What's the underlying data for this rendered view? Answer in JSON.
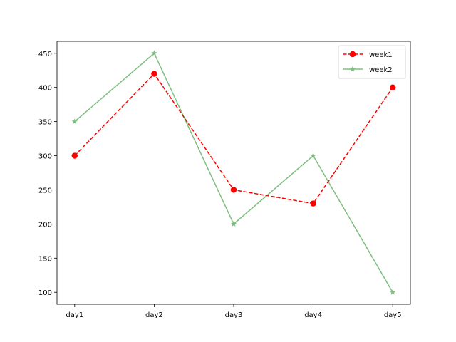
{
  "chart_data": {
    "type": "line",
    "categories": [
      "day1",
      "day2",
      "day3",
      "day4",
      "day5"
    ],
    "series": [
      {
        "name": "week1",
        "values": [
          300,
          420,
          250,
          230,
          400
        ],
        "color": "#ff0000",
        "line_style": "dashed",
        "marker": "circle"
      },
      {
        "name": "week2",
        "values": [
          350,
          450,
          200,
          300,
          100
        ],
        "color": "#008000",
        "line_style": "solid",
        "marker": "star",
        "alpha": 0.5
      }
    ],
    "y_ticks": [
      100,
      150,
      200,
      250,
      300,
      350,
      400,
      450
    ],
    "ylim": [
      82.5,
      467.5
    ],
    "grid": false,
    "legend_position": "top-right"
  }
}
